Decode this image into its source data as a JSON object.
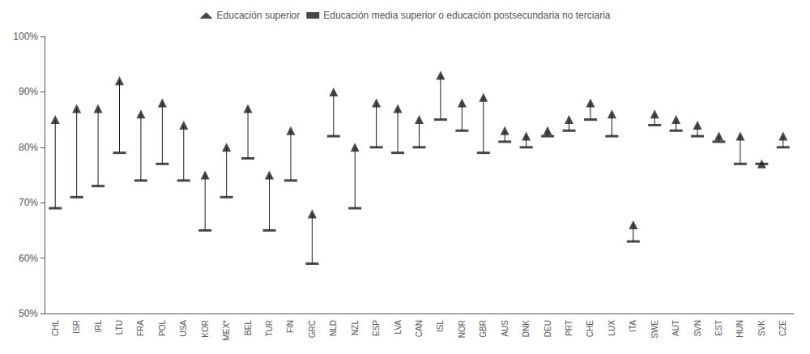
{
  "chart_data": {
    "type": "range",
    "categories": [
      "CHL",
      "ISR",
      "IRL",
      "LTU",
      "FRA",
      "POL",
      "USA",
      "KOR",
      "MEX*",
      "BEL",
      "TUR",
      "FIN",
      "GRC",
      "NLD",
      "NZL",
      "ESP",
      "LVA",
      "CAN",
      "ISL",
      "NOR",
      "GBR",
      "AUS",
      "DNK",
      "DEU",
      "PRT",
      "CHE",
      "LUX",
      "ITA",
      "SWE",
      "AUT",
      "SVN",
      "EST",
      "HUN",
      "SVK",
      "CZE"
    ],
    "series": [
      {
        "name": "Educación superior",
        "marker": "triangle",
        "values": [
          85,
          87,
          87,
          92,
          86,
          88,
          84,
          75,
          80,
          87,
          75,
          83,
          68,
          90,
          80,
          88,
          87,
          85,
          93,
          88,
          89,
          83,
          82,
          83,
          85,
          88,
          86,
          66,
          86,
          85,
          84,
          82,
          82,
          77,
          82
        ]
      },
      {
        "name": "Educación media superior o educación postsecundaria no terciaria",
        "marker": "dash",
        "values": [
          69,
          71,
          73,
          79,
          74,
          77,
          74,
          65,
          71,
          78,
          65,
          74,
          59,
          82,
          69,
          80,
          79,
          80,
          85,
          83,
          79,
          81,
          80,
          82,
          83,
          85,
          82,
          63,
          84,
          83,
          82,
          81,
          77,
          77,
          80
        ]
      }
    ],
    "color": "#1a1a1a",
    "ylim": [
      50,
      100
    ],
    "yticks": [
      {
        "value": 50,
        "label": "50%"
      },
      {
        "value": 60,
        "label": "60%"
      },
      {
        "value": 70,
        "label": "70%"
      },
      {
        "value": 80,
        "label": "80%"
      },
      {
        "value": 90,
        "label": "90%"
      },
      {
        "value": 100,
        "label": "100%"
      }
    ],
    "grid": false,
    "legend": "top"
  }
}
